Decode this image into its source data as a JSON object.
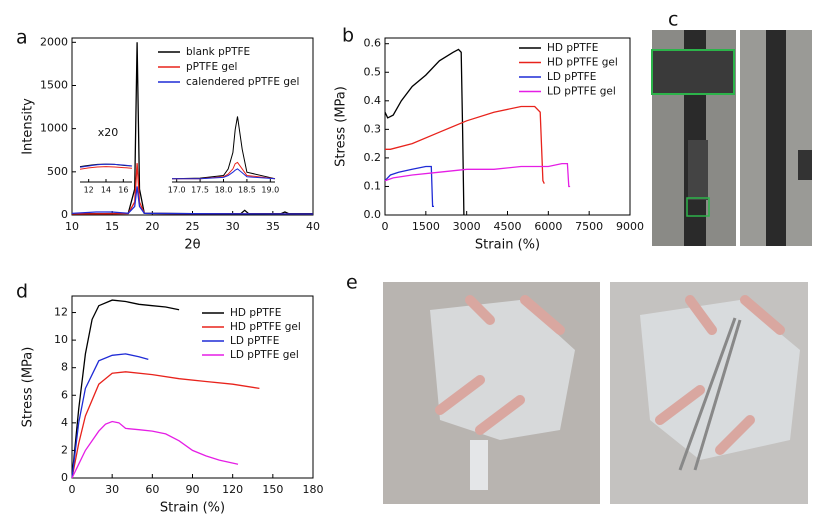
{
  "chart_data": [
    {
      "panel": "a",
      "type": "line",
      "xlabel": "2θ",
      "ylabel": "Intensity",
      "xlim": [
        10,
        40
      ],
      "ylim": [
        0,
        2050
      ],
      "xticks": [
        10,
        15,
        20,
        25,
        30,
        35,
        40
      ],
      "yticks": [
        0,
        500,
        1000,
        1500,
        2000
      ],
      "legend": "upper right",
      "annotation": "x20",
      "series": [
        {
          "name": "blank pPTFE",
          "color": "#000000",
          "x": [
            10,
            14,
            17,
            17.8,
            18.1,
            18.4,
            19,
            25,
            29,
            31,
            31.5,
            32,
            36,
            36.5,
            37,
            40
          ],
          "values": [
            15,
            15,
            18,
            300,
            2000,
            300,
            20,
            15,
            15,
            15,
            55,
            15,
            15,
            35,
            15,
            15
          ]
        },
        {
          "name": "pPTFE gel",
          "color": "#e8231c",
          "x": [
            10,
            14,
            17,
            17.8,
            18.1,
            18.4,
            19,
            25,
            40
          ],
          "values": [
            12,
            14,
            16,
            150,
            600,
            150,
            18,
            14,
            12
          ]
        },
        {
          "name": "calendered pPTFE gel",
          "color": "#1f2bd6",
          "x": [
            10,
            13,
            15,
            17,
            17.8,
            18.1,
            18.4,
            19,
            25,
            40
          ],
          "values": [
            18,
            35,
            35,
            20,
            100,
            330,
            100,
            20,
            15,
            12
          ]
        }
      ],
      "insets": [
        {
          "xlim": [
            11,
            17
          ],
          "ylim": [
            0,
            100
          ],
          "xticks": [
            12,
            14,
            16
          ],
          "series": [
            {
              "color": "#000000",
              "x": [
                11,
                12,
                13,
                14,
                15,
                16,
                17
              ],
              "values": [
                48,
                52,
                55,
                56,
                55,
                52,
                50
              ]
            },
            {
              "color": "#e8231c",
              "x": [
                11,
                12,
                13,
                14,
                15,
                16,
                17
              ],
              "values": [
                40,
                44,
                47,
                48,
                47,
                45,
                43
              ]
            },
            {
              "color": "#1f2bd6",
              "x": [
                11,
                12,
                13,
                14,
                15,
                16,
                17
              ],
              "values": [
                46,
                50,
                54,
                56,
                55,
                53,
                50
              ]
            }
          ]
        },
        {
          "xlim": [
            16.9,
            19.1
          ],
          "ylim": [
            0,
            110
          ],
          "xticks": [
            {
              "value": 17,
              "label": "17.0"
            },
            17.5,
            {
              "value": 18,
              "label": "18.0"
            },
            18.5,
            {
              "value": 19,
              "label": "19.0"
            }
          ],
          "series": [
            {
              "color": "#000000",
              "x": [
                16.9,
                17.5,
                18.0,
                18.1,
                18.2,
                18.25,
                18.3,
                18.4,
                18.5,
                19.1
              ],
              "values": [
                5,
                6,
                10,
                20,
                45,
                80,
                100,
                50,
                15,
                5
              ]
            },
            {
              "color": "#e8231c",
              "x": [
                16.9,
                17.5,
                18.0,
                18.1,
                18.2,
                18.25,
                18.3,
                18.4,
                18.5,
                19.1
              ],
              "values": [
                5,
                5,
                8,
                12,
                20,
                28,
                30,
                20,
                10,
                5
              ]
            },
            {
              "color": "#1f2bd6",
              "x": [
                16.9,
                17.5,
                18.0,
                18.1,
                18.2,
                18.25,
                18.3,
                18.4,
                18.5,
                19.1
              ],
              "values": [
                5,
                5,
                7,
                10,
                15,
                18,
                20,
                14,
                8,
                5
              ]
            }
          ]
        }
      ]
    },
    {
      "panel": "b",
      "type": "line",
      "xlabel": "Strain (%)",
      "ylabel": "Stress (MPa)",
      "xlim": [
        0,
        9000
      ],
      "ylim": [
        0,
        0.62
      ],
      "xticks": [
        0,
        1500,
        3000,
        4500,
        6000,
        7500,
        9000
      ],
      "yticks": [
        {
          "value": 0,
          "label": "0.0"
        },
        0.1,
        0.2,
        0.3,
        0.4,
        0.5,
        0.6
      ],
      "legend": "upper right",
      "series": [
        {
          "name": "HD pPTFE",
          "color": "#000000",
          "x": [
            0,
            100,
            300,
            600,
            1000,
            1500,
            2000,
            2500,
            2700,
            2800,
            2850,
            2900
          ],
          "values": [
            0.36,
            0.34,
            0.35,
            0.4,
            0.45,
            0.49,
            0.54,
            0.57,
            0.58,
            0.57,
            0.3,
            0.0
          ]
        },
        {
          "name": "HD pPTFE gel",
          "color": "#e8231c",
          "x": [
            0,
            200,
            1000,
            2000,
            3000,
            4000,
            5000,
            5500,
            5700,
            5800,
            5850
          ],
          "values": [
            0.23,
            0.23,
            0.25,
            0.29,
            0.33,
            0.36,
            0.38,
            0.38,
            0.36,
            0.12,
            0.11
          ]
        },
        {
          "name": "LD pPTFE",
          "color": "#1f2bd6",
          "x": [
            0,
            200,
            500,
            1000,
            1500,
            1700,
            1750,
            1800
          ],
          "values": [
            0.12,
            0.14,
            0.15,
            0.16,
            0.17,
            0.17,
            0.03,
            0.03
          ]
        },
        {
          "name": "LD pPTFE gel",
          "color": "#e51ee5",
          "x": [
            0,
            300,
            1000,
            2000,
            3000,
            4000,
            5000,
            6000,
            6500,
            6700,
            6750,
            6800
          ],
          "values": [
            0.12,
            0.13,
            0.14,
            0.15,
            0.16,
            0.16,
            0.17,
            0.17,
            0.18,
            0.18,
            0.1,
            0.1
          ]
        }
      ]
    },
    {
      "panel": "d",
      "type": "line",
      "xlabel": "Strain (%)",
      "ylabel": "Stress (MPa)",
      "xlim": [
        0,
        180
      ],
      "ylim": [
        0,
        13.2
      ],
      "xticks": [
        0,
        30,
        60,
        90,
        120,
        150,
        180
      ],
      "yticks": [
        0,
        2,
        4,
        6,
        8,
        10,
        12
      ],
      "legend": "upper right",
      "series": [
        {
          "name": "HD pPTFE",
          "color": "#000000",
          "x": [
            0,
            5,
            10,
            15,
            20,
            30,
            40,
            50,
            60,
            70,
            80
          ],
          "values": [
            0,
            5,
            9,
            11.5,
            12.5,
            12.9,
            12.8,
            12.6,
            12.5,
            12.4,
            12.2
          ]
        },
        {
          "name": "HD pPTFE gel",
          "color": "#e8231c",
          "x": [
            0,
            5,
            10,
            20,
            30,
            40,
            60,
            80,
            100,
            120,
            140
          ],
          "values": [
            0,
            2.5,
            4.5,
            6.8,
            7.6,
            7.7,
            7.5,
            7.2,
            7.0,
            6.8,
            6.5
          ]
        },
        {
          "name": "LD pPTFE",
          "color": "#1f2bd6",
          "x": [
            0,
            5,
            10,
            20,
            30,
            40,
            50,
            57
          ],
          "values": [
            0,
            4,
            6.5,
            8.5,
            8.9,
            9.0,
            8.8,
            8.6
          ]
        },
        {
          "name": "LD pPTFE gel",
          "color": "#e51ee5",
          "x": [
            0,
            5,
            10,
            20,
            25,
            30,
            35,
            40,
            50,
            60,
            70,
            80,
            90,
            100,
            110,
            124
          ],
          "values": [
            0,
            1,
            2,
            3.4,
            3.9,
            4.1,
            4.0,
            3.6,
            3.5,
            3.4,
            3.2,
            2.7,
            2.0,
            1.6,
            1.3,
            1.0
          ]
        }
      ]
    }
  ],
  "photo_panels": [
    {
      "label": "c"
    },
    {
      "label": "e"
    }
  ]
}
